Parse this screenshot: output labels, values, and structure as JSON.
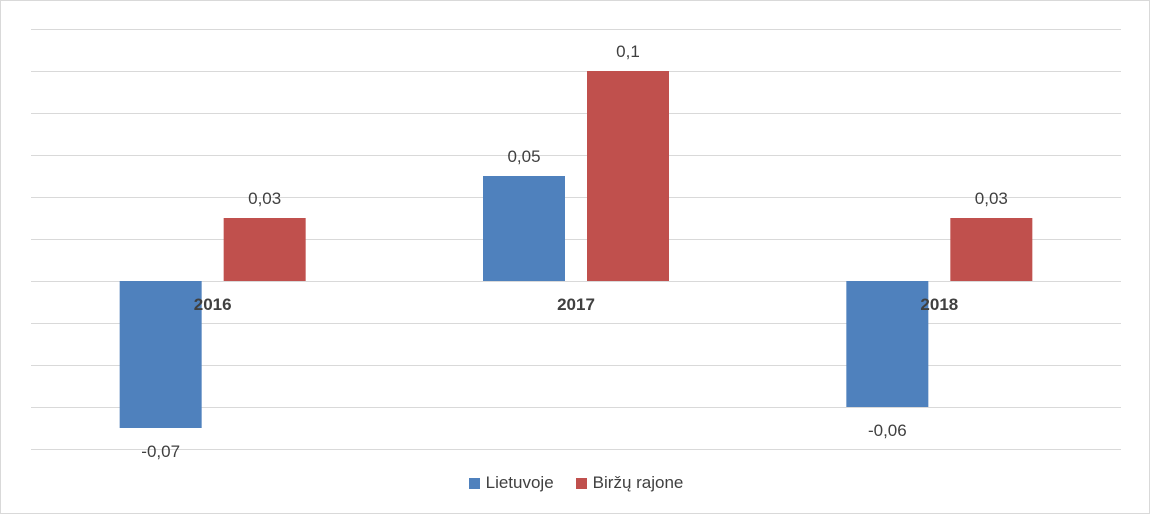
{
  "chart_data": {
    "type": "bar",
    "categories": [
      "2016",
      "2017",
      "2018"
    ],
    "series": [
      {
        "name": "Lietuvoje",
        "color": "#4f81bd",
        "values": [
          -0.07,
          0.05,
          -0.06
        ],
        "labels": [
          "-0,07",
          "0,05",
          "-0,06"
        ]
      },
      {
        "name": "Biržų rajone",
        "color": "#c0504d",
        "values": [
          0.03,
          0.1,
          0.03
        ],
        "labels": [
          "0,03",
          "0,1",
          "0,03"
        ]
      }
    ],
    "ylim": [
      -0.08,
      0.12
    ],
    "grid": true,
    "legend_position": "bottom"
  }
}
